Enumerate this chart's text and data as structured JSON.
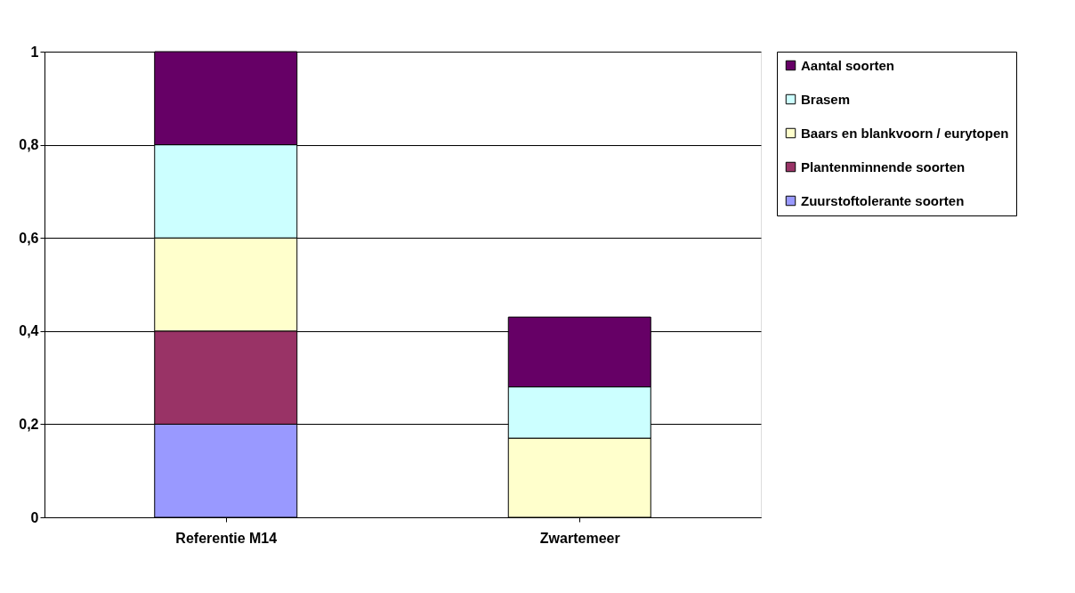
{
  "chart_data": {
    "type": "bar",
    "stacked": true,
    "categories": [
      "Referentie M14",
      "Zwartemeer"
    ],
    "series": [
      {
        "name": "Zuurstoftolerante soorten",
        "color": "#9999ff",
        "values": [
          0.2,
          0
        ]
      },
      {
        "name": "Plantenminnende soorten",
        "color": "#993366",
        "values": [
          0.2,
          0
        ]
      },
      {
        "name": "Baars en blankvoorn / eurytopen",
        "color": "#ffffcc",
        "values": [
          0.2,
          0.17
        ]
      },
      {
        "name": "Brasem",
        "color": "#ccffff",
        "values": [
          0.2,
          0.11
        ]
      },
      {
        "name": "Aantal soorten",
        "color": "#660066",
        "values": [
          0.2,
          0.15
        ]
      }
    ],
    "ylim": [
      0,
      1
    ],
    "yticks": [
      {
        "value": 0,
        "label": "0"
      },
      {
        "value": 0.2,
        "label": "0,2"
      },
      {
        "value": 0.4,
        "label": "0,4"
      },
      {
        "value": 0.6,
        "label": "0,6"
      },
      {
        "value": 0.8,
        "label": "0,8"
      },
      {
        "value": 1,
        "label": "1"
      }
    ],
    "grid": "y",
    "legend": "right"
  }
}
